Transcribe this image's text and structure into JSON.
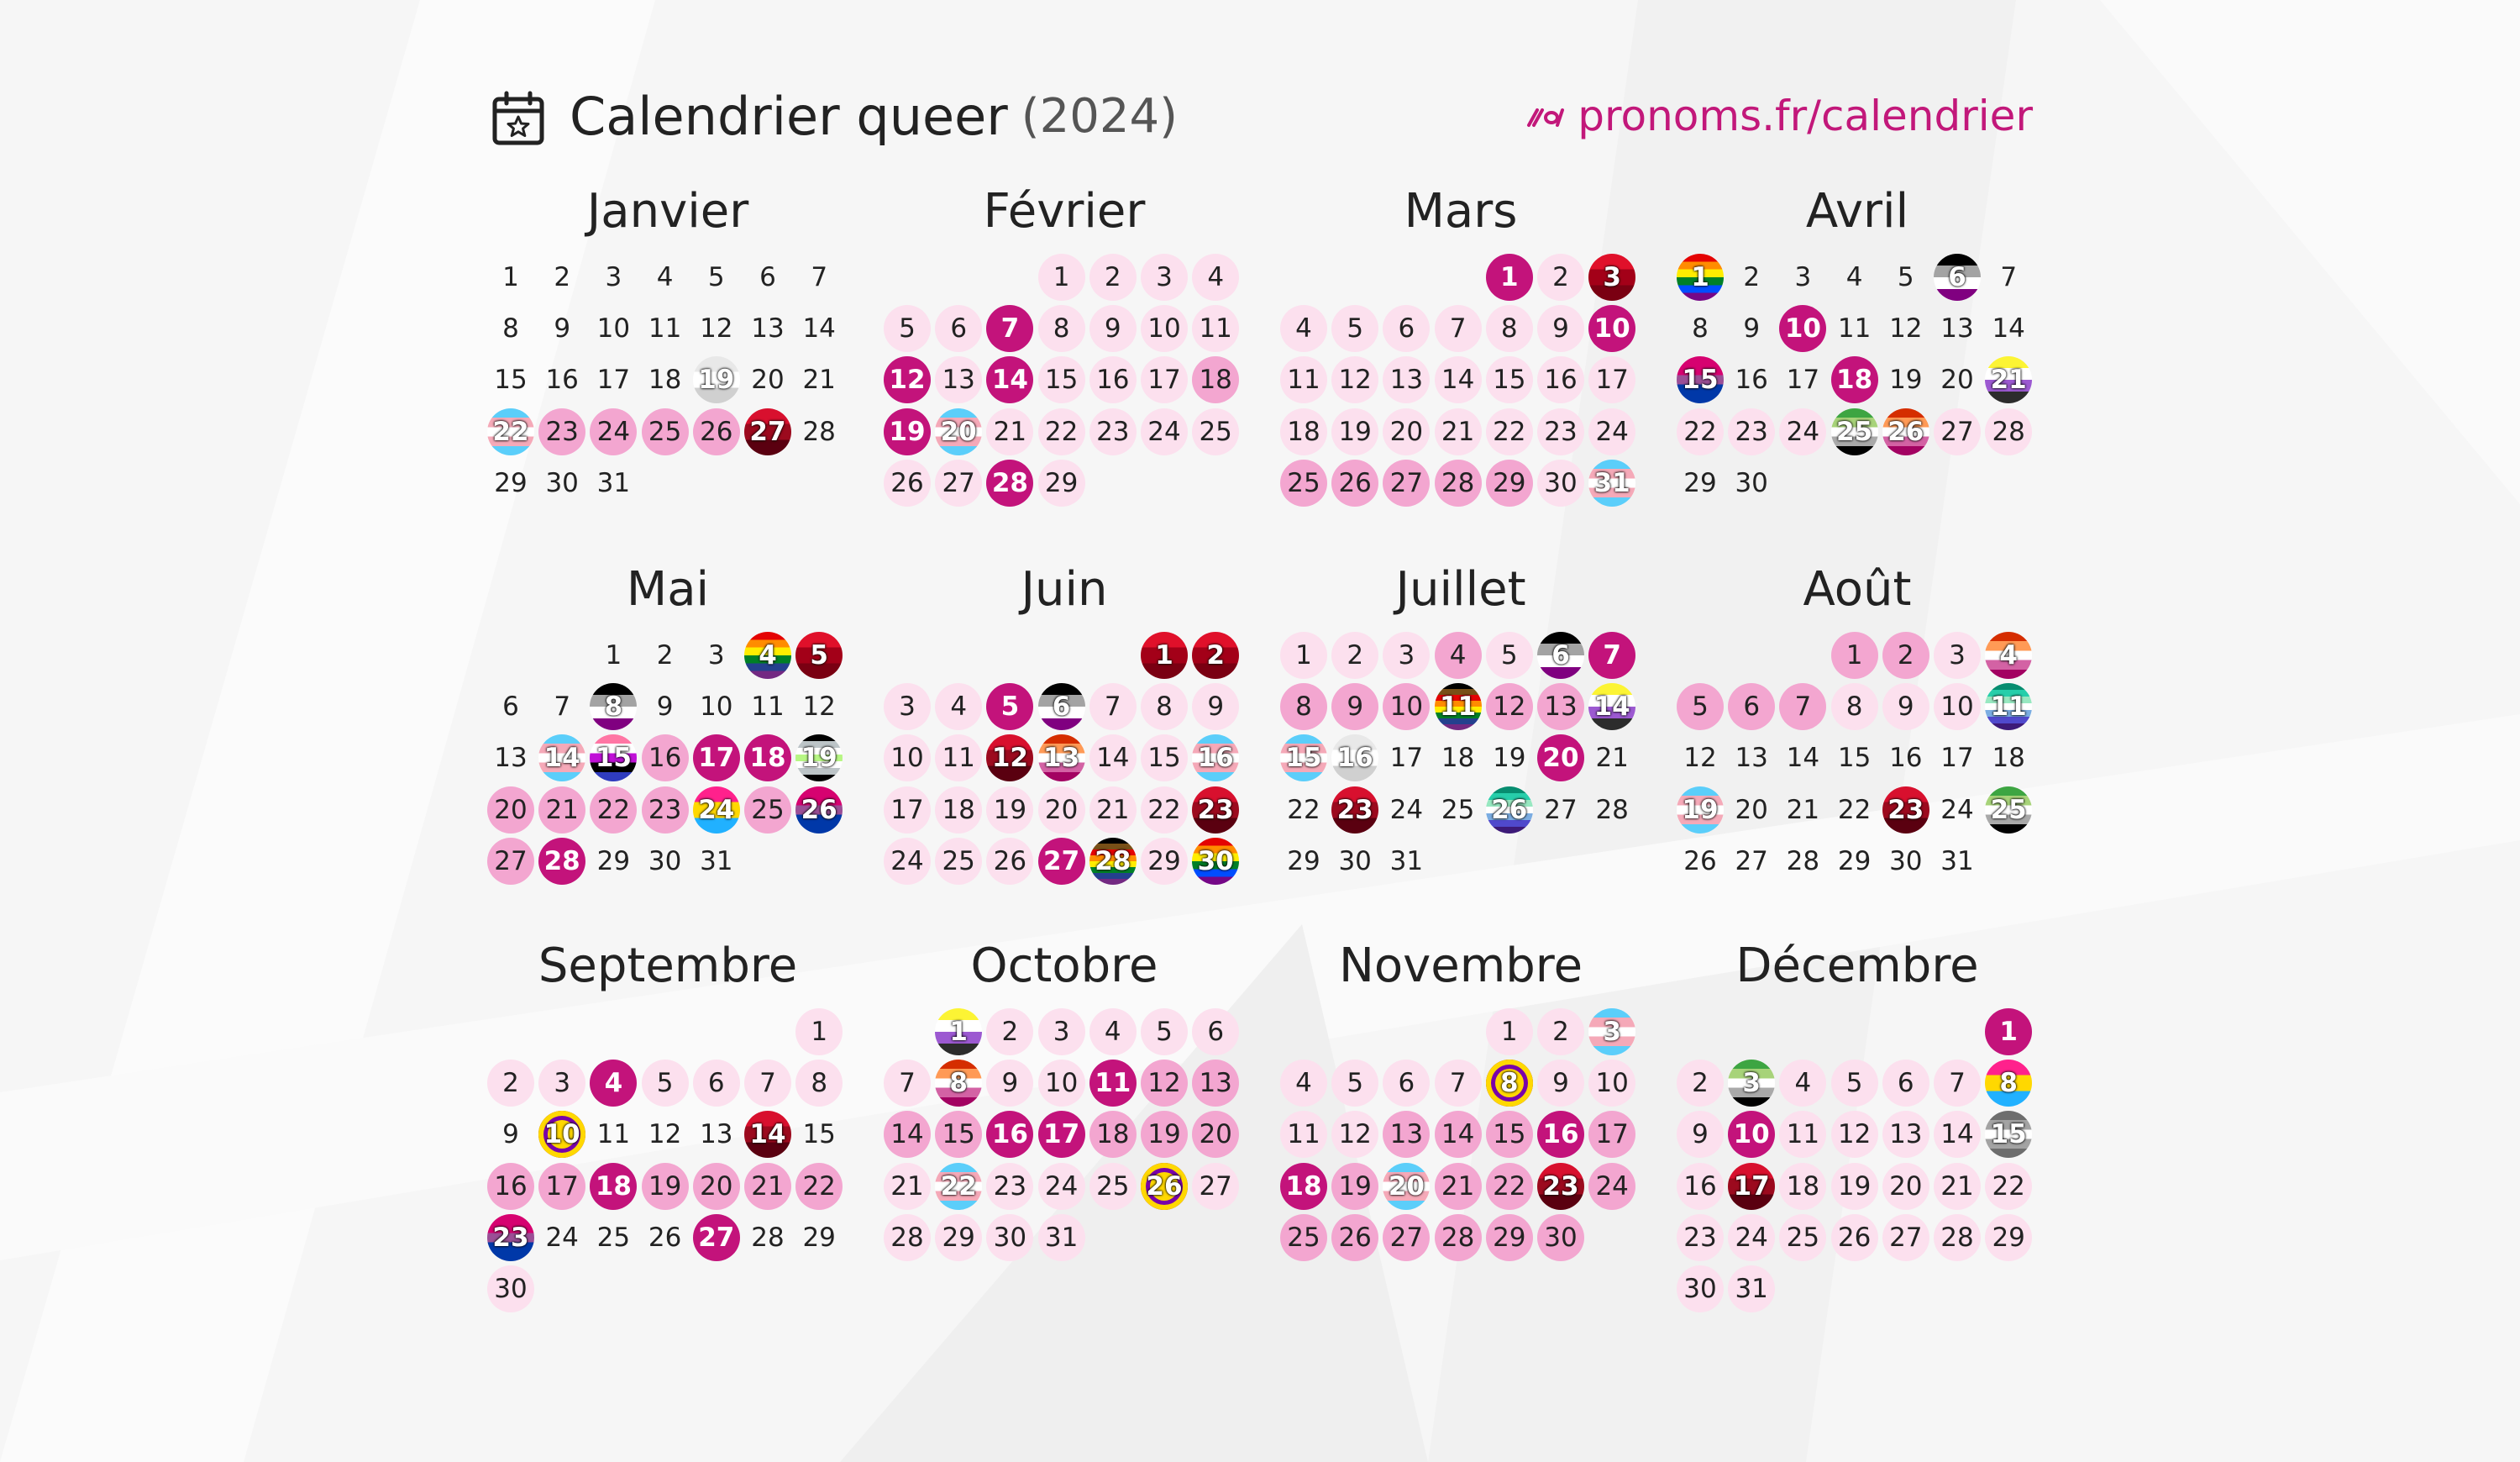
{
  "title": "Calendrier queer",
  "year": "(2024)",
  "link": "pronoms.fr/calendrier",
  "icons": {
    "calendar": "calendar-star-icon",
    "link": "pronoms-logo-icon"
  },
  "colors": {
    "accent": "#c2187a",
    "light": "#fce0ee",
    "medium": "#f3a6d0",
    "strong": "#c3137b",
    "flags": {
      "rainbow": [
        "#e40303",
        "#ff8c00",
        "#ffed00",
        "#008026",
        "#004dff",
        "#750787"
      ],
      "trans": [
        "#5bcefa",
        "#f5a9b8",
        "#ffffff",
        "#f5a9b8",
        "#5bcefa"
      ],
      "bi": [
        "#d60270",
        "#d60270",
        "#9b4f96",
        "#0038a8",
        "#0038a8"
      ],
      "pan": [
        "#ff218c",
        "#ffd800",
        "#21b1ff"
      ],
      "ace": [
        "#000000",
        "#a3a3a3",
        "#ffffff",
        "#800080"
      ],
      "aro": [
        "#3da542",
        "#a7d379",
        "#ffffff",
        "#a9a9a9",
        "#000000"
      ],
      "lesbian": [
        "#d52d00",
        "#ff9a56",
        "#ffffff",
        "#d362a4",
        "#a30262"
      ],
      "nonbinary": [
        "#fcf434",
        "#ffffff",
        "#9c59d1",
        "#2c2c2c"
      ],
      "intersex": [
        "#ffd800"
      ],
      "gay": [
        "#078d70",
        "#26ceaa",
        "#98e8c1",
        "#ffffff",
        "#7bade2",
        "#5049cc",
        "#3d1a78"
      ],
      "genderfluid": [
        "#ff76a4",
        "#ffffff",
        "#c011d7",
        "#000000",
        "#2f3cbe"
      ],
      "agender": [
        "#000000",
        "#bcc4c7",
        "#ffffff",
        "#b7f684",
        "#ffffff",
        "#bcc4c7",
        "#000000"
      ],
      "red": [
        "#e0102a",
        "#a30018",
        "#7a0012"
      ],
      "hiv": [
        "#d8102e",
        "#9c0a1e",
        "#5a0010"
      ],
      "demi": [
        "#6d6d6d",
        "#a3a3a3",
        "#ffffff",
        "#a3a3a3",
        "#6d6d6d"
      ],
      "trans_pride": [
        "#5bcefa",
        "#ffffff",
        "#f5a9b8"
      ],
      "poly": [
        "#0000ff",
        "#ff0000",
        "#000000"
      ],
      "progress": [
        "#000000",
        "#784f17",
        "#e40303",
        "#ff8c00",
        "#ffed00",
        "#008026",
        "#24408e",
        "#732982"
      ],
      "twospirit": [
        "#e40303",
        "#ff8c00",
        "#ffed00",
        "#008026",
        "#24408e",
        "#732982"
      ],
      "grey": [
        "#e8e8e8",
        "#ffffff",
        "#d0d0d0"
      ],
      "fuchsia": [
        "#d60270",
        "#ff66cc",
        "#b00060"
      ]
    }
  },
  "months": [
    {
      "name": "Janvier",
      "offset": 0,
      "days": 31,
      "marks": {
        "19": "f:grey",
        "22": "f:trans",
        "23": "medium",
        "24": "medium",
        "25": "medium",
        "26": "medium",
        "27": "f:hiv"
      }
    },
    {
      "name": "Février",
      "offset": 3,
      "days": 29,
      "marks": {
        "1": "light",
        "2": "light",
        "3": "light",
        "4": "light",
        "5": "light",
        "6": "light",
        "7": "strong",
        "8": "light",
        "9": "light",
        "10": "light",
        "11": "light",
        "12": "strong",
        "13": "light",
        "14": "strong",
        "15": "light",
        "16": "light",
        "17": "light",
        "18": "medium",
        "19": "strong",
        "20": "f:trans",
        "21": "light",
        "22": "light",
        "23": "light",
        "24": "light",
        "25": "light",
        "26": "light",
        "27": "light",
        "28": "strong",
        "29": "light"
      }
    },
    {
      "name": "Mars",
      "offset": 4,
      "days": 31,
      "marks": {
        "1": "strong",
        "2": "light",
        "3": "f:red",
        "4": "light",
        "5": "light",
        "6": "light",
        "7": "light",
        "8": "light",
        "9": "light",
        "10": "strong",
        "11": "light",
        "12": "light",
        "13": "light",
        "14": "light",
        "15": "light",
        "16": "light",
        "17": "light",
        "18": "light",
        "19": "light",
        "20": "light",
        "21": "light",
        "22": "light",
        "23": "light",
        "24": "light",
        "25": "medium",
        "26": "medium",
        "27": "medium",
        "28": "medium",
        "29": "medium",
        "30": "light",
        "31": "f:trans"
      }
    },
    {
      "name": "Avril",
      "offset": 0,
      "days": 30,
      "marks": {
        "1": "f:rainbow",
        "6": "f:ace",
        "10": "strong",
        "15": "f:bi",
        "18": "strong",
        "21": "f:nonbinary",
        "22": "light",
        "23": "light",
        "24": "light",
        "25": "f:aro",
        "26": "f:lesbian",
        "27": "light",
        "28": "light"
      }
    },
    {
      "name": "Mai",
      "offset": 2,
      "days": 31,
      "marks": {
        "4": "f:twospirit",
        "5": "f:red",
        "8": "f:ace",
        "14": "f:trans",
        "15": "f:genderfluid",
        "16": "medium",
        "17": "strong",
        "18": "strong",
        "19": "f:agender",
        "20": "medium",
        "21": "medium",
        "22": "medium",
        "23": "medium",
        "24": "f:pan",
        "25": "medium",
        "26": "f:bi",
        "27": "medium",
        "28": "strong"
      }
    },
    {
      "name": "Juin",
      "offset": 5,
      "days": 30,
      "marks": {
        "1": "f:red",
        "2": "f:red",
        "3": "light",
        "4": "light",
        "5": "strong",
        "6": "f:ace",
        "7": "light",
        "8": "light",
        "9": "light",
        "10": "light",
        "11": "light",
        "12": "f:hiv",
        "13": "f:lesbian",
        "14": "light",
        "15": "light",
        "16": "f:trans",
        "17": "light",
        "18": "light",
        "19": "light",
        "20": "light",
        "21": "light",
        "22": "light",
        "23": "f:hiv",
        "24": "light",
        "25": "light",
        "26": "light",
        "27": "strong",
        "28": "f:progress",
        "29": "light",
        "30": "f:rainbow"
      }
    },
    {
      "name": "Juillet",
      "offset": 0,
      "days": 31,
      "marks": {
        "1": "light",
        "2": "light",
        "3": "light",
        "4": "medium",
        "5": "light",
        "6": "f:ace",
        "7": "strong",
        "8": "medium",
        "9": "medium",
        "10": "medium",
        "11": "f:progress",
        "12": "medium",
        "13": "medium",
        "14": "f:nonbinary",
        "15": "f:trans",
        "16": "f:grey",
        "20": "strong",
        "23": "f:hiv",
        "26": "f:gay"
      }
    },
    {
      "name": "Août",
      "offset": 3,
      "days": 31,
      "marks": {
        "1": "medium",
        "2": "medium",
        "3": "light",
        "4": "f:lesbian",
        "5": "medium",
        "6": "medium",
        "7": "medium",
        "8": "light",
        "9": "light",
        "10": "light",
        "11": "f:gay",
        "19": "f:trans",
        "23": "f:hiv",
        "25": "f:aro"
      }
    },
    {
      "name": "Septembre",
      "offset": 6,
      "days": 30,
      "marks": {
        "1": "light",
        "2": "light",
        "3": "light",
        "4": "strong",
        "5": "light",
        "6": "light",
        "7": "light",
        "8": "light",
        "10": "f:intersex",
        "14": "f:hiv",
        "16": "medium",
        "17": "medium",
        "18": "strong",
        "19": "medium",
        "20": "medium",
        "21": "medium",
        "22": "medium",
        "23": "f:bi",
        "27": "strong",
        "30": "light"
      }
    },
    {
      "name": "Octobre",
      "offset": 1,
      "days": 31,
      "marks": {
        "1": "f:nonbinary",
        "2": "light",
        "3": "light",
        "4": "light",
        "5": "light",
        "6": "light",
        "7": "light",
        "8": "f:lesbian",
        "9": "light",
        "10": "light",
        "11": "strong",
        "12": "medium",
        "13": "medium",
        "14": "medium",
        "15": "medium",
        "16": "strong",
        "17": "strong",
        "18": "medium",
        "19": "medium",
        "20": "medium",
        "21": "light",
        "22": "f:trans",
        "23": "light",
        "24": "light",
        "25": "light",
        "26": "f:intersex",
        "27": "light",
        "28": "light",
        "29": "light",
        "30": "light",
        "31": "light"
      }
    },
    {
      "name": "Novembre",
      "offset": 4,
      "days": 30,
      "marks": {
        "1": "light",
        "2": "light",
        "3": "f:trans",
        "4": "light",
        "5": "light",
        "6": "light",
        "7": "light",
        "8": "f:intersex",
        "9": "light",
        "10": "light",
        "11": "light",
        "12": "light",
        "13": "medium",
        "14": "medium",
        "15": "medium",
        "16": "strong",
        "17": "medium",
        "18": "strong",
        "19": "medium",
        "20": "f:trans",
        "21": "medium",
        "22": "medium",
        "23": "f:hiv",
        "24": "medium",
        "25": "medium",
        "26": "medium",
        "27": "medium",
        "28": "medium",
        "29": "medium",
        "30": "medium"
      }
    },
    {
      "name": "Décembre",
      "offset": 6,
      "days": 31,
      "marks": {
        "1": "strong",
        "2": "light",
        "3": "f:aro",
        "4": "light",
        "5": "light",
        "6": "light",
        "7": "light",
        "8": "f:pan",
        "9": "light",
        "10": "strong",
        "11": "light",
        "12": "light",
        "13": "light",
        "14": "light",
        "15": "f:demi",
        "16": "light",
        "17": "f:hiv",
        "18": "light",
        "19": "light",
        "20": "light",
        "21": "light",
        "22": "light",
        "23": "light",
        "24": "light",
        "25": "light",
        "26": "light",
        "27": "light",
        "28": "light",
        "29": "light",
        "30": "light",
        "31": "light"
      }
    }
  ]
}
